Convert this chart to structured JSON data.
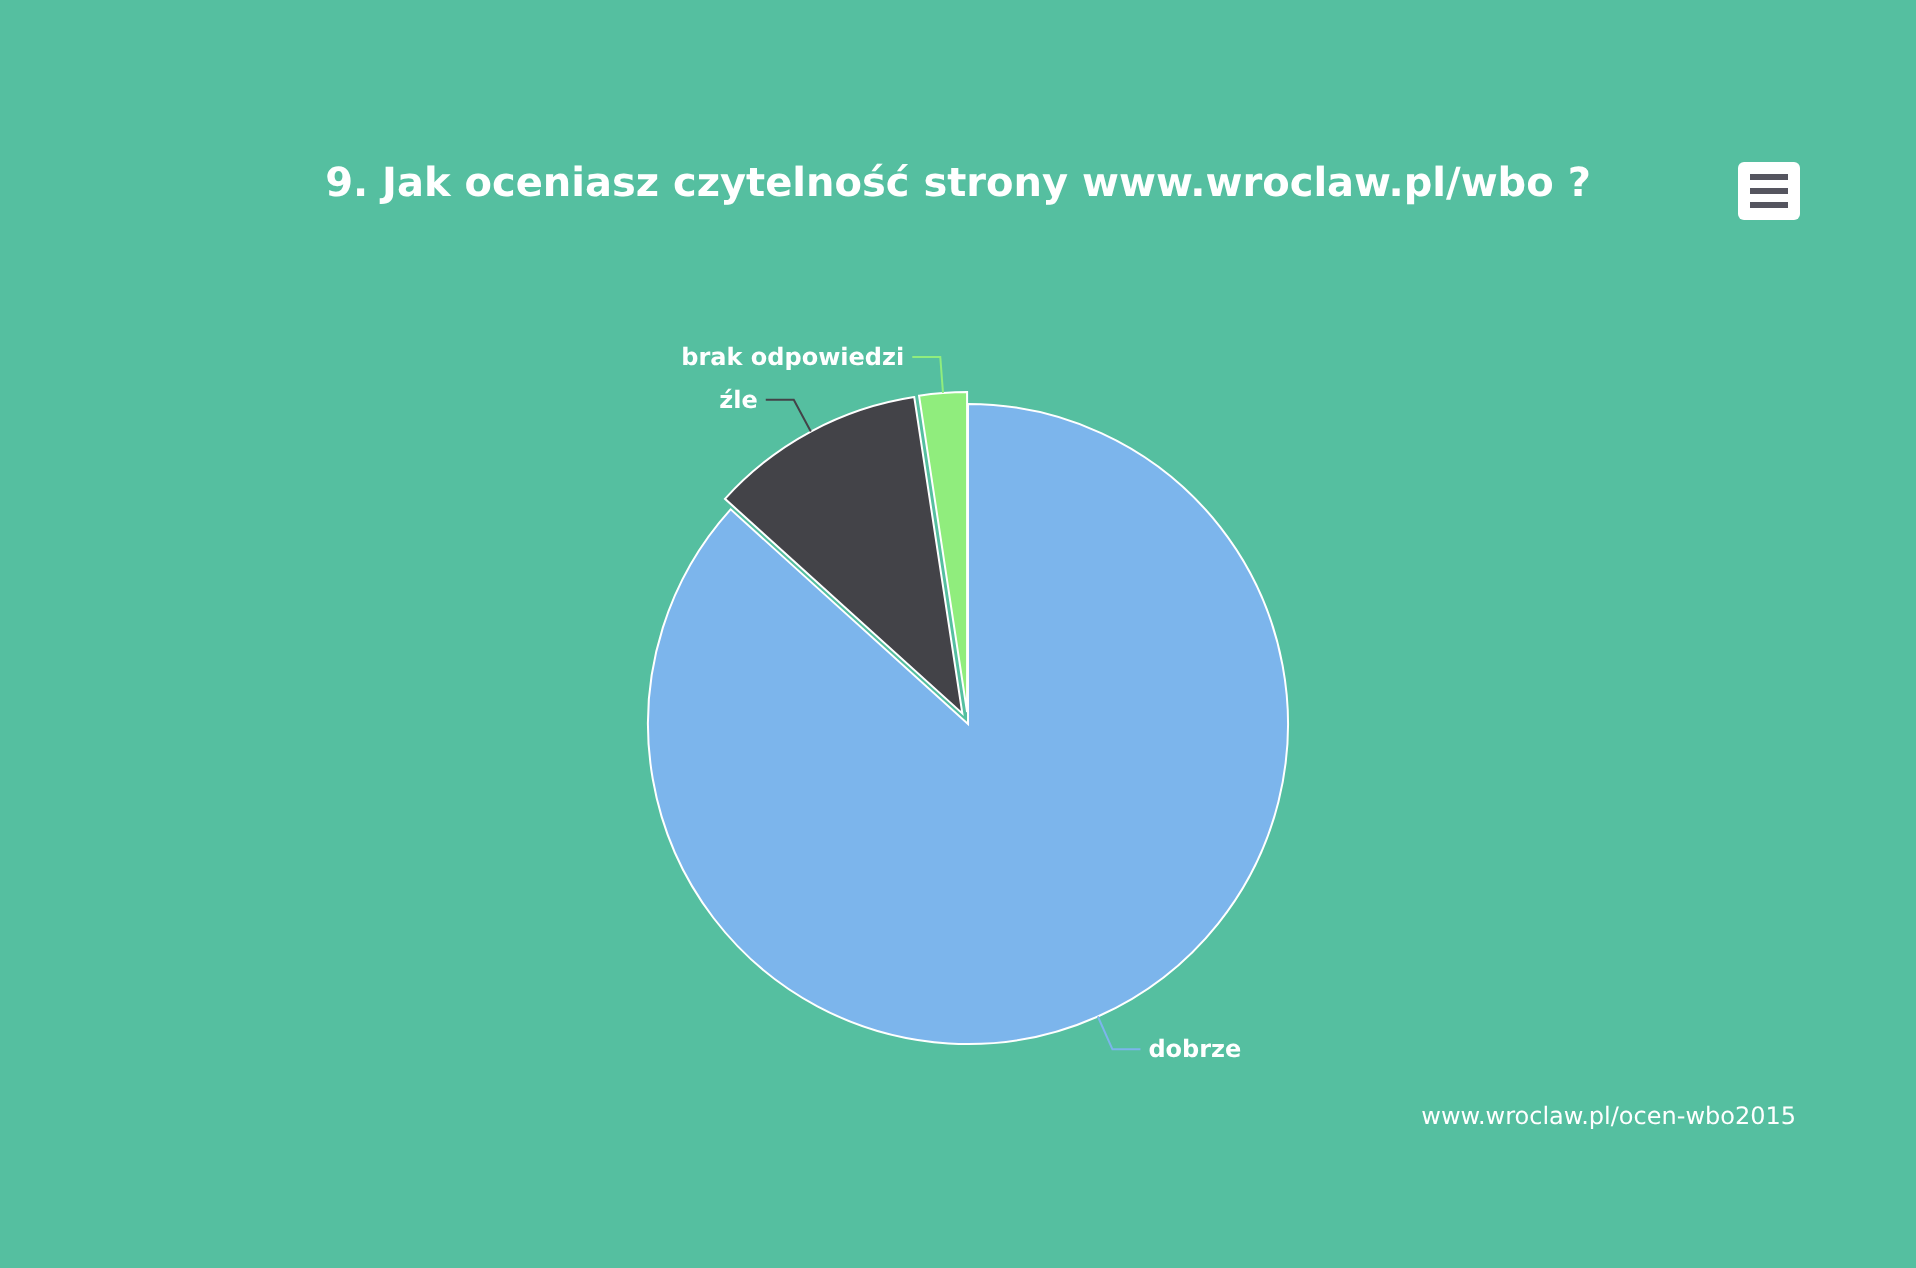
{
  "chart_data": {
    "type": "pie",
    "title": "9. Jak oceniasz czytelność strony www.wroclaw.pl/wbo ?",
    "categories": [
      "dobrze",
      "źle",
      "brak odpowiedzi"
    ],
    "values": [
      86.7,
      10.9,
      2.4
    ],
    "colors": [
      "#7cb5ec",
      "#434348",
      "#90ed7d"
    ],
    "annotations": [
      "www.wroclaw.pl/ocen-wbo2015"
    ]
  }
}
